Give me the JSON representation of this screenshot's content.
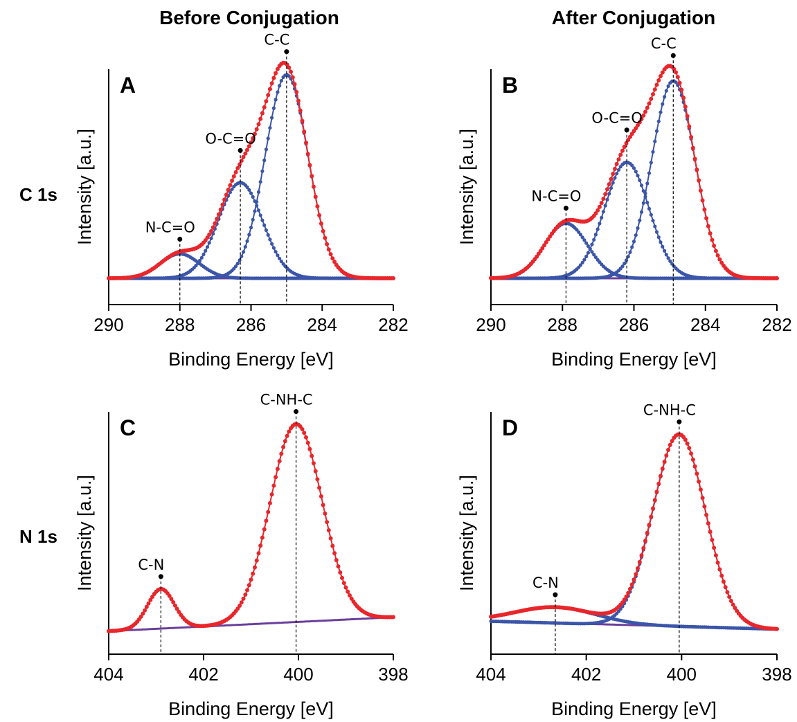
{
  "column_titles": [
    "Before Conjugation",
    "After Conjugation"
  ],
  "row_labels": [
    "C 1s",
    "N 1s"
  ],
  "colors": {
    "envelope": "#e8262b",
    "component": "#3b55a8",
    "background": "#6a3f9a"
  },
  "chart_data": [
    {
      "type": "line",
      "panel": "A",
      "region": "C 1s",
      "condition": "Before Conjugation",
      "xlabel": "Binding Energy [eV]",
      "ylabel": "Intensity [a.u.]",
      "xlim": [
        290,
        282
      ],
      "ylim": [
        -0.1,
        1.05
      ],
      "xticks": [
        290,
        288,
        286,
        284,
        282
      ],
      "background": {
        "left": 0.0,
        "right": 0.0
      },
      "peaks": [
        {
          "label": "N-C=O",
          "center": 288.0,
          "height": 0.12,
          "width": 0.55
        },
        {
          "label": "O-C=O",
          "center": 286.3,
          "height": 0.47,
          "width": 0.62
        },
        {
          "label": "C-C",
          "center": 285.0,
          "height": 1.0,
          "width": 0.6
        }
      ]
    },
    {
      "type": "line",
      "panel": "B",
      "region": "C 1s",
      "condition": "After Conjugation",
      "xlabel": "Binding Energy [eV]",
      "ylabel": "Intensity [a.u.]",
      "xlim": [
        290,
        282
      ],
      "ylim": [
        -0.1,
        1.05
      ],
      "xticks": [
        290,
        288,
        286,
        284,
        282
      ],
      "background": {
        "left": 0.0,
        "right": 0.0
      },
      "peaks": [
        {
          "label": "N-C=O",
          "center": 287.9,
          "height": 0.27,
          "width": 0.6
        },
        {
          "label": "O-C=O",
          "center": 286.2,
          "height": 0.57,
          "width": 0.62
        },
        {
          "label": "C-C",
          "center": 284.9,
          "height": 0.97,
          "width": 0.6
        }
      ]
    },
    {
      "type": "line",
      "panel": "C",
      "region": "N 1s",
      "condition": "Before Conjugation",
      "xlabel": "Binding Energy [eV]",
      "ylabel": "Intensity [a.u.]",
      "xlim": [
        404,
        398
      ],
      "ylim": [
        -0.1,
        1.05
      ],
      "xticks": [
        404,
        402,
        400,
        398
      ],
      "background": {
        "left": -0.02,
        "right": 0.05
      },
      "peaks": [
        {
          "label": "C-N",
          "center": 402.9,
          "height": 0.2,
          "width": 0.28
        },
        {
          "label": "C-NH-C",
          "center": 400.05,
          "height": 1.0,
          "width": 0.55
        }
      ]
    },
    {
      "type": "line",
      "panel": "D",
      "region": "N 1s",
      "condition": "After Conjugation",
      "xlabel": "Binding Energy [eV]",
      "ylabel": "Intensity [a.u.]",
      "xlim": [
        404,
        398
      ],
      "ylim": [
        -0.1,
        1.05
      ],
      "xticks": [
        404,
        402,
        400,
        398
      ],
      "background": {
        "left": 0.03,
        "right": -0.01
      },
      "peaks": [
        {
          "label": "C-N",
          "center": 402.65,
          "height": 0.08,
          "width": 0.85
        },
        {
          "label": "C-NH-C",
          "center": 400.05,
          "height": 0.97,
          "width": 0.55
        }
      ]
    }
  ]
}
